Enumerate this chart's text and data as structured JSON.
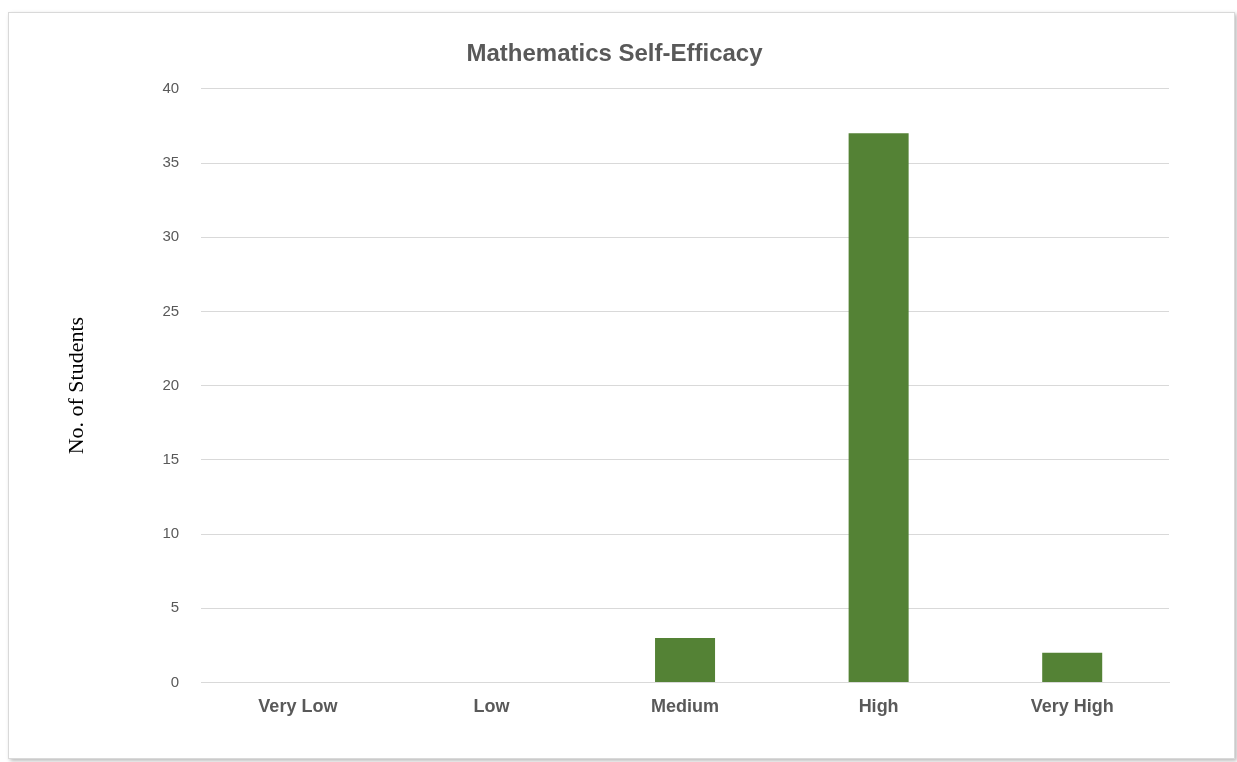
{
  "chart_data": {
    "type": "bar",
    "title": "Mathematics Self-Efficacy",
    "ylabel": "No. of Students",
    "categories": [
      "Very Low",
      "Low",
      "Medium",
      "High",
      "Very High"
    ],
    "values": [
      0,
      0,
      3,
      37,
      2
    ],
    "color": "#548235",
    "ylim": [
      0,
      40
    ],
    "yticks": [
      0,
      5,
      10,
      15,
      20,
      25,
      30,
      35,
      40
    ],
    "grid": "y",
    "legend": false
  }
}
